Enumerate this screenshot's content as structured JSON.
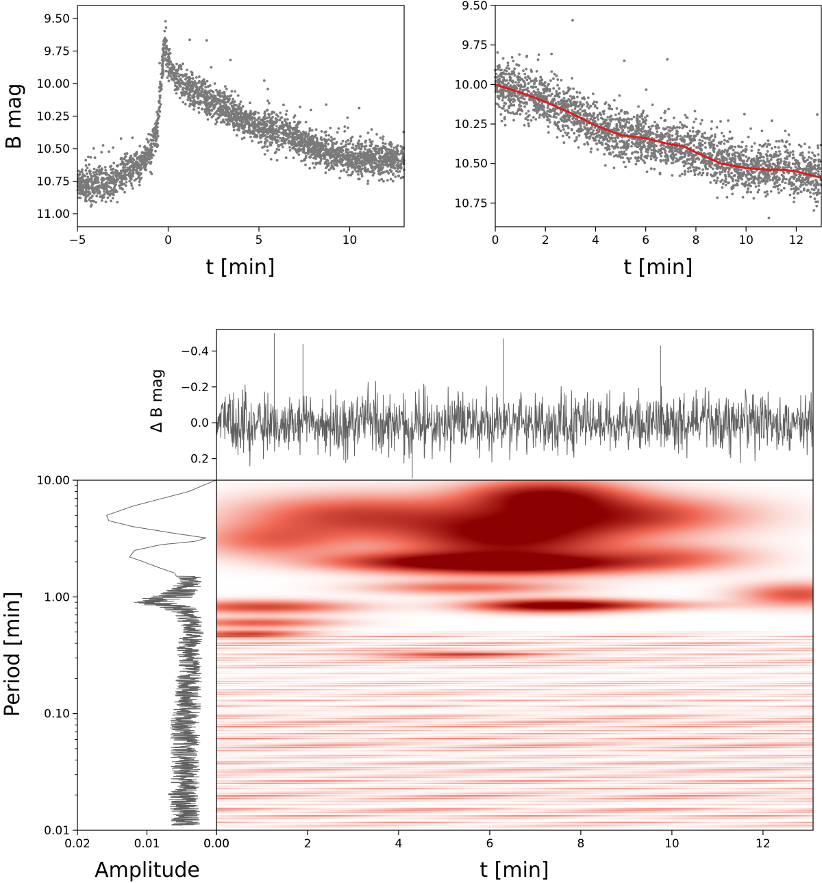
{
  "colors": {
    "points": "#7a7a7a",
    "fit_line": "#e31a1c",
    "residual_line": "#606060",
    "spectrum_line": "#606060",
    "heatmap_low": "#ffffff",
    "heatmap_high": "#8b0000"
  },
  "chart_data": [
    {
      "type": "scatter",
      "xlabel": "t [min]",
      "ylabel": "B mag",
      "xlim": [
        -5,
        13
      ],
      "ylim": [
        11.1,
        9.4
      ],
      "y_inverted": true,
      "xticks": [
        -5,
        0,
        5,
        10
      ],
      "xtick_labels": [
        "−5",
        "0",
        "5",
        "10"
      ],
      "yticks": [
        9.5,
        9.75,
        10.0,
        10.25,
        10.5,
        10.75,
        11.0
      ],
      "ytick_labels": [
        "9.50",
        "9.75",
        "10.00",
        "10.25",
        "10.50",
        "10.75",
        "11.00"
      ],
      "series": [
        {
          "trend_x": [
            -5,
            -4,
            -3,
            -2,
            -1.5,
            -1,
            -0.6,
            -0.4,
            -0.2,
            0,
            0.5,
            1,
            2,
            3,
            4,
            5,
            6,
            7,
            8,
            9,
            10,
            11,
            12,
            13
          ],
          "trend_y": [
            10.78,
            10.78,
            10.74,
            10.65,
            10.62,
            10.52,
            10.35,
            10.0,
            9.7,
            9.82,
            9.98,
            10.02,
            10.1,
            10.18,
            10.27,
            10.33,
            10.36,
            10.42,
            10.5,
            10.55,
            10.57,
            10.58,
            10.58,
            10.58
          ],
          "scatter": 0.065,
          "n_points": 3000
        }
      ]
    },
    {
      "type": "scatter",
      "xlabel": "t [min]",
      "ylabel": "",
      "xlim": [
        0,
        13
      ],
      "ylim": [
        10.9,
        9.5
      ],
      "y_inverted": true,
      "xticks": [
        0,
        2,
        4,
        6,
        8,
        10,
        12
      ],
      "xtick_labels": [
        "0",
        "2",
        "4",
        "6",
        "8",
        "10",
        "12"
      ],
      "yticks": [
        9.5,
        9.75,
        10.0,
        10.25,
        10.5,
        10.75
      ],
      "ytick_labels": [
        "9.50",
        "9.75",
        "10.00",
        "10.25",
        "10.50",
        "10.75"
      ],
      "series": [
        {
          "trend_x": [
            0,
            1,
            2,
            3,
            4,
            5,
            5.5,
            6,
            6.5,
            7,
            7.5,
            8,
            9,
            10,
            11,
            11.5,
            12,
            13
          ],
          "trend_y": [
            10.0,
            10.05,
            10.11,
            10.18,
            10.26,
            10.32,
            10.33,
            10.34,
            10.36,
            10.38,
            10.39,
            10.43,
            10.5,
            10.53,
            10.54,
            10.54,
            10.55,
            10.59
          ],
          "scatter": 0.08,
          "n_points": 2600
        },
        {
          "name": "fit",
          "x": [
            0,
            1,
            2,
            3,
            4,
            5,
            5.5,
            6,
            6.5,
            7,
            7.5,
            8,
            9,
            10,
            11,
            11.5,
            12,
            13
          ],
          "y": [
            10.0,
            10.05,
            10.11,
            10.18,
            10.26,
            10.32,
            10.33,
            10.34,
            10.36,
            10.38,
            10.39,
            10.43,
            10.5,
            10.53,
            10.54,
            10.54,
            10.55,
            10.59
          ]
        }
      ]
    },
    {
      "type": "line",
      "xlabel": "",
      "ylabel": "Δ B mag",
      "xlim": [
        0,
        13.1
      ],
      "ylim": [
        0.32,
        -0.52
      ],
      "y_inverted": true,
      "yticks": [
        -0.4,
        -0.2,
        0.0,
        0.2
      ],
      "ytick_labels": [
        "−0.4",
        "−0.2",
        "0.0",
        "0.2"
      ],
      "noise_sigma": 0.08,
      "n_points": 1500,
      "spikes": [
        {
          "x": 1.27,
          "y": -0.5
        },
        {
          "x": 6.3,
          "y": -0.47
        },
        {
          "x": 1.9,
          "y": -0.44
        },
        {
          "x": 9.75,
          "y": -0.43
        },
        {
          "x": 4.3,
          "y": 0.31
        }
      ]
    },
    {
      "type": "line",
      "xlabel": "Amplitude",
      "ylabel": "Period [min]",
      "xlim": [
        0.02,
        0.0
      ],
      "ylim": [
        0.01,
        10.0
      ],
      "y_scale": "log",
      "xticks": [
        0.02,
        0.01,
        0.0
      ],
      "xtick_labels": [
        "0.02",
        "0.01",
        "0.00"
      ],
      "yticks": [
        0.01,
        0.1,
        1.0,
        10.0
      ],
      "ytick_labels": [
        "0.01",
        "0.10",
        "1.00",
        "10.00"
      ],
      "envelope_period": [
        10.0,
        8.0,
        6.0,
        5.0,
        4.5,
        4.0,
        3.5,
        3.2,
        3.0,
        2.8,
        2.5,
        2.2,
        2.0,
        1.8,
        1.6,
        1.4,
        1.2,
        1.0,
        0.9,
        0.8,
        0.7,
        0.6,
        0.5,
        0.4,
        0.3,
        0.2,
        0.15,
        0.1,
        0.07,
        0.05,
        0.03,
        0.02,
        0.015,
        0.011
      ],
      "envelope_amplitude": [
        0.0001,
        0.004,
        0.012,
        0.0158,
        0.0155,
        0.012,
        0.006,
        0.0015,
        0.003,
        0.008,
        0.0118,
        0.0125,
        0.0105,
        0.0085,
        0.006,
        0.0055,
        0.0065,
        0.0095,
        0.0145,
        0.0085,
        0.006,
        0.0055,
        0.005,
        0.006,
        0.0055,
        0.0058,
        0.006,
        0.0065,
        0.0068,
        0.0066,
        0.0066,
        0.007,
        0.0068,
        0.0065
      ]
    },
    {
      "type": "heatmap",
      "xlabel": "t [min]",
      "ylabel": "",
      "xlim": [
        0,
        13.1
      ],
      "ylim": [
        0.01,
        10.0
      ],
      "y_scale": "log",
      "xticks": [
        0,
        2,
        4,
        6,
        8,
        10,
        12
      ],
      "xtick_labels": [
        "0.00",
        "2",
        "4",
        "6",
        "8",
        "10",
        "12"
      ],
      "blobs": [
        {
          "t": 7.2,
          "period": 7.5,
          "intensity": 0.85,
          "t_width": 1.2,
          "log_width": 0.1
        },
        {
          "t": 6.4,
          "period": 3.3,
          "intensity": 1.0,
          "t_width": 1.6,
          "log_width": 0.16
        },
        {
          "t": 9.0,
          "period": 5.0,
          "intensity": 0.7,
          "t_width": 1.8,
          "log_width": 0.12
        },
        {
          "t": 3.0,
          "period": 5.0,
          "intensity": 0.65,
          "t_width": 1.8,
          "log_width": 0.13
        },
        {
          "t": 1.2,
          "period": 3.0,
          "intensity": 0.45,
          "t_width": 1.2,
          "log_width": 0.1
        },
        {
          "t": 6.8,
          "period": 1.9,
          "intensity": 0.95,
          "t_width": 1.8,
          "log_width": 0.06
        },
        {
          "t": 4.2,
          "period": 2.0,
          "intensity": 0.6,
          "t_width": 1.5,
          "log_width": 0.06
        },
        {
          "t": 10.0,
          "period": 2.2,
          "intensity": 0.45,
          "t_width": 1.3,
          "log_width": 0.08
        },
        {
          "t": 7.3,
          "period": 0.84,
          "intensity": 1.0,
          "t_width": 1.2,
          "log_width": 0.04
        },
        {
          "t": 1.0,
          "period": 0.82,
          "intensity": 0.65,
          "t_width": 1.4,
          "log_width": 0.04
        },
        {
          "t": 12.8,
          "period": 1.05,
          "intensity": 0.6,
          "t_width": 0.9,
          "log_width": 0.07
        },
        {
          "t": 5.5,
          "period": 1.2,
          "intensity": 0.5,
          "t_width": 1.5,
          "log_width": 0.04
        },
        {
          "t": 0.9,
          "period": 0.6,
          "intensity": 0.55,
          "t_width": 1.2,
          "log_width": 0.03
        },
        {
          "t": 0.7,
          "period": 0.48,
          "intensity": 0.6,
          "t_width": 0.9,
          "log_width": 0.025
        },
        {
          "t": 5.2,
          "period": 0.32,
          "intensity": 0.55,
          "t_width": 1.3,
          "log_width": 0.02
        },
        {
          "t": 9.0,
          "period": 0.85,
          "intensity": 0.35,
          "t_width": 1.5,
          "log_width": 0.03
        }
      ]
    }
  ]
}
